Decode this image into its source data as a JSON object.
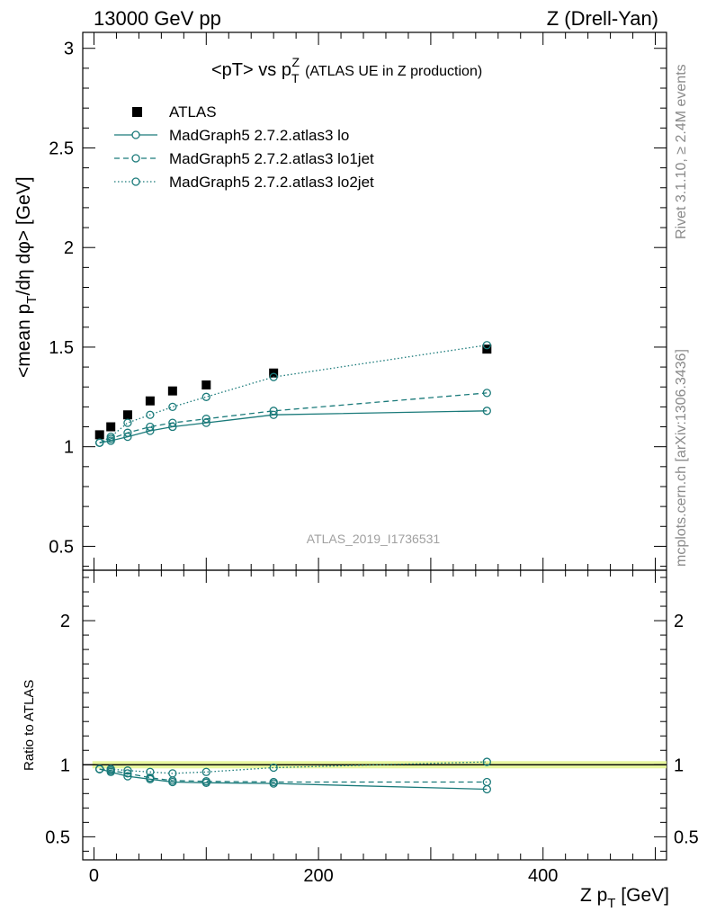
{
  "header": {
    "left": "13000 GeV pp",
    "right": "Z (Drell-Yan)"
  },
  "side_labels": {
    "rivet": "Rivet 3.1.10, ≥ 2.4M events",
    "mcplots": "mcplots.cern.ch [arXiv:1306.3436]"
  },
  "watermark": "ATLAS_2019_I1736531",
  "colors": {
    "data": "#000000",
    "mc": "#1a7a7a",
    "band": "#e3f58c"
  },
  "chart_data": [
    {
      "type": "line",
      "title": "<pT> vs p_T^Z (ATLAS UE in Z production)",
      "xlabel": "Z p_T [GeV]",
      "ylabel": "<mean p_T/dη dφ> [GeV]",
      "xlim": [
        -10,
        510
      ],
      "ylim": [
        0.38,
        3.08
      ],
      "yticks": [
        "0.5",
        "1",
        "1.5",
        "2",
        "2.5",
        "3"
      ],
      "xticks": [
        "0",
        "200",
        "400"
      ],
      "x": [
        5,
        15,
        30,
        50,
        70,
        100,
        160,
        350
      ],
      "series": [
        {
          "name": "ATLAS",
          "style": "marker-square",
          "values": [
            1.06,
            1.1,
            1.16,
            1.23,
            1.28,
            1.31,
            1.37,
            1.49
          ]
        },
        {
          "name": "MadGraph5 2.7.2.atlas3 lo",
          "style": "solid",
          "values": [
            1.02,
            1.03,
            1.05,
            1.08,
            1.1,
            1.12,
            1.16,
            1.18
          ]
        },
        {
          "name": "MadGraph5 2.7.2.atlas3 lo1jet",
          "style": "dashed",
          "values": [
            1.02,
            1.04,
            1.07,
            1.1,
            1.12,
            1.14,
            1.18,
            1.27
          ]
        },
        {
          "name": "MadGraph5 2.7.2.atlas3 lo2jet",
          "style": "dotted",
          "values": [
            1.02,
            1.05,
            1.12,
            1.16,
            1.2,
            1.25,
            1.35,
            1.51
          ]
        }
      ],
      "legend": "top-left"
    },
    {
      "type": "line",
      "ylabel": "Ratio to ATLAS",
      "xlabel": "Z p_T [GeV]",
      "xlim": [
        -10,
        510
      ],
      "ylim": [
        0.34,
        2.35
      ],
      "yticks": [
        "0.5",
        "1",
        "2"
      ],
      "x": [
        5,
        15,
        30,
        50,
        70,
        100,
        160,
        350
      ],
      "series": [
        {
          "name": "MadGraph5 2.7.2.atlas3 lo",
          "style": "solid",
          "values": [
            0.97,
            0.95,
            0.92,
            0.9,
            0.88,
            0.875,
            0.87,
            0.83
          ]
        },
        {
          "name": "MadGraph5 2.7.2.atlas3 lo1jet",
          "style": "dashed",
          "values": [
            0.97,
            0.96,
            0.94,
            0.91,
            0.89,
            0.885,
            0.88,
            0.88
          ]
        },
        {
          "name": "MadGraph5 2.7.2.atlas3 lo2jet",
          "style": "dotted",
          "values": [
            0.97,
            0.97,
            0.96,
            0.95,
            0.94,
            0.95,
            0.98,
            1.02
          ]
        }
      ],
      "reference": 1.0
    }
  ]
}
